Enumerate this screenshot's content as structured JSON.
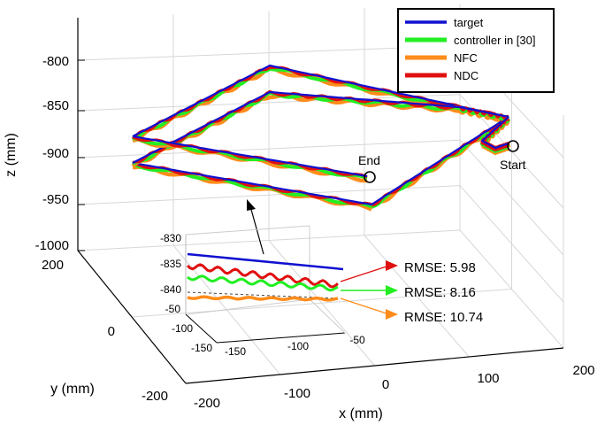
{
  "chart_data": {
    "type": "line",
    "dimensions": "3d",
    "xlabel": "x (mm)",
    "ylabel": "y (mm)",
    "zlabel": "z (mm)",
    "xlim": [
      -200,
      200
    ],
    "ylim": [
      -200,
      200
    ],
    "zlim": [
      -1000,
      -780
    ],
    "x_ticks": [
      "-200",
      "-100",
      "0",
      "100",
      "200"
    ],
    "y_ticks": [
      "-200",
      "0",
      "200"
    ],
    "z_ticks": [
      "-800",
      "-850",
      "-900",
      "-950",
      "-1000"
    ],
    "grid": true,
    "legend_position": "top-right",
    "series": [
      {
        "name": "target",
        "color": "#1010d0"
      },
      {
        "name": "controller in [30]",
        "color": "#22ee22"
      },
      {
        "name": "NFC",
        "color": "#ff8c1a"
      },
      {
        "name": "NDC",
        "color": "#e01010"
      }
    ],
    "annotations": {
      "start": "Start",
      "end": "End"
    },
    "inset": {
      "xlim": [
        -150,
        -50
      ],
      "ylim": [
        -150,
        -50
      ],
      "zlim": [
        -840,
        -830
      ],
      "x_ticks": [
        "-150",
        "-100",
        "-50"
      ],
      "y_ticks": [
        "-150",
        "-100",
        "-50"
      ],
      "z_ticks": [
        "-830",
        "-835",
        "-840"
      ]
    },
    "rmse": [
      {
        "series": "NDC",
        "label": "RMSE:  5.98",
        "color": "#e01010"
      },
      {
        "series": "controller in [30]",
        "label": "RMSE:  8.16",
        "color": "#22ee22"
      },
      {
        "series": "NFC",
        "label": "RMSE: 10.74",
        "color": "#ff8c1a"
      }
    ]
  }
}
